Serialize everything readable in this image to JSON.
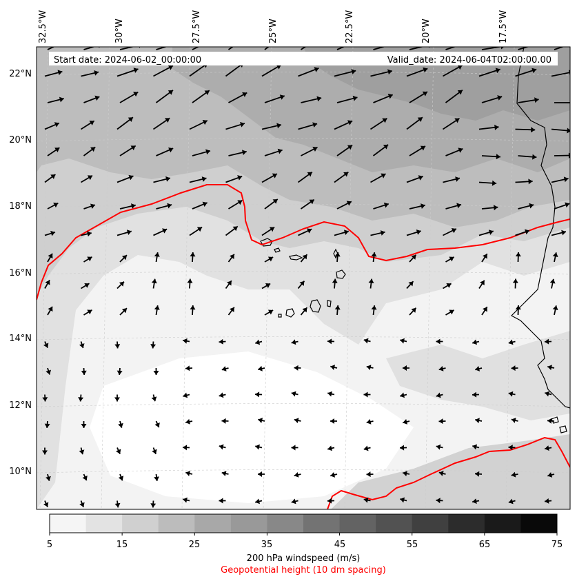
{
  "header": {
    "start_date": "Start date: 2024-06-02_00:00:00",
    "valid_date": "Valid_date: 2024-06-04T02:00:00.00"
  },
  "axes": {
    "lon_labels": [
      "32.5°W",
      "30°W",
      "27.5°W",
      "25°W",
      "22.5°W",
      "20°W",
      "17.5°W"
    ],
    "lat_labels": [
      "22°N",
      "20°N",
      "18°N",
      "16°N",
      "14°N",
      "12°N",
      "10°N"
    ]
  },
  "colorbar": {
    "ticks": [
      "5",
      "15",
      "25",
      "35",
      "45",
      "55",
      "65",
      "75"
    ],
    "levels": [
      5,
      10,
      15,
      20,
      25,
      30,
      35,
      40,
      45,
      50,
      55,
      60,
      65,
      70,
      75
    ],
    "colors": [
      "#f5f5f5",
      "#e3e3e3",
      "#d0d0d0",
      "#bcbcbc",
      "#a8a8a8",
      "#999999",
      "#888888",
      "#737373",
      "#636363",
      "#525252",
      "#404040",
      "#2c2c2c",
      "#1a1a1a",
      "#090909"
    ],
    "title": "200 hPa windspeed (m/s)",
    "subtitle": "Geopotential height (10 dm spacing)",
    "subtitle_color": "#ff0000"
  },
  "styles": {
    "contour_color": "#ff0000",
    "coast_color": "#000000",
    "arrow_color": "#000000",
    "grid_color": "#cccccc"
  }
}
